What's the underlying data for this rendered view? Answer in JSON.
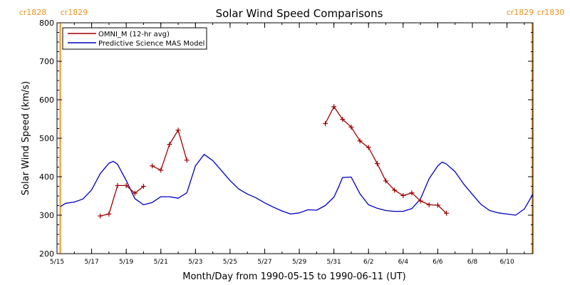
{
  "chart_data": {
    "type": "line",
    "title": "Solar Wind Speed Comparisons",
    "xlabel": "Month/Day from 1990-05-15 to 1990-06-11 (UT)",
    "ylabel": "Solar Wind Speed (km/s)",
    "xlim": [
      "1990-05-15",
      "1990-06-11T12:00"
    ],
    "ylim": [
      200,
      800
    ],
    "yticks": [
      200,
      300,
      400,
      500,
      600,
      700,
      800
    ],
    "xticks": [
      "1990-05-15",
      "1990-05-17",
      "1990-05-19",
      "1990-05-21",
      "1990-05-23",
      "1990-05-25",
      "1990-05-27",
      "1990-05-29",
      "1990-05-31",
      "1990-06-02",
      "1990-06-04",
      "1990-06-06",
      "1990-06-08",
      "1990-06-10"
    ],
    "xtick_labels": [
      "5/15",
      "5/17",
      "5/19",
      "5/21",
      "5/23",
      "5/25",
      "5/27",
      "5/29",
      "5/31",
      "6/2",
      "6/4",
      "6/6",
      "6/8",
      "6/10"
    ],
    "legend": {
      "placement": "top-left"
    },
    "carrington_markers": [
      {
        "date": "1990-05-15T04:30",
        "labels": [
          "cr1828",
          "cr1829"
        ],
        "color": "#f0a030"
      },
      {
        "date": "1990-06-11T12:00",
        "labels": [
          "cr1829",
          "cr1830"
        ],
        "color": "#f0a030"
      }
    ],
    "series": [
      {
        "name": "OMNI_M (12-hr avg)",
        "color": "#a00000",
        "marker": "+",
        "segments": [
          [
            [
              "1990-05-17T12:00",
              298
            ],
            [
              "1990-05-18T00:00",
              303
            ],
            [
              "1990-05-18T12:00",
              377
            ],
            [
              "1990-05-19T00:00",
              377
            ],
            [
              "1990-05-19T12:00",
              357
            ],
            [
              "1990-05-20T00:00",
              375
            ]
          ],
          [
            [
              "1990-05-20T12:00",
              428
            ],
            [
              "1990-05-21T00:00",
              417
            ],
            [
              "1990-05-21T12:00",
              484
            ],
            [
              "1990-05-22T00:00",
              521
            ],
            [
              "1990-05-22T12:00",
              443
            ]
          ],
          [
            [
              "1990-05-30T12:00",
              538
            ],
            [
              "1990-05-31T00:00",
              582
            ],
            [
              "1990-05-31T12:00",
              549
            ],
            [
              "1990-06-01T00:00",
              529
            ],
            [
              "1990-06-01T12:00",
              493
            ],
            [
              "1990-06-02T00:00",
              476
            ],
            [
              "1990-06-02T12:00",
              434
            ],
            [
              "1990-06-03T00:00",
              389
            ],
            [
              "1990-06-03T12:00",
              365
            ],
            [
              "1990-06-04T00:00",
              351
            ],
            [
              "1990-06-04T12:00",
              358
            ],
            [
              "1990-06-05T00:00",
              337
            ],
            [
              "1990-06-05T12:00",
              327
            ],
            [
              "1990-06-06T00:00",
              326
            ],
            [
              "1990-06-06T12:00",
              305
            ]
          ]
        ]
      },
      {
        "name": "Predictive Science MAS Model",
        "color": "#0000c0",
        "x": [
          "1990-05-15T04:30",
          "1990-05-15T12:00",
          "1990-05-16T00:00",
          "1990-05-16T12:00",
          "1990-05-17T00:00",
          "1990-05-17T12:00",
          "1990-05-18T00:00",
          "1990-05-18T06:00",
          "1990-05-18T12:00",
          "1990-05-19T00:00",
          "1990-05-19T12:00",
          "1990-05-20T00:00",
          "1990-05-20T12:00",
          "1990-05-21T00:00",
          "1990-05-21T12:00",
          "1990-05-22T00:00",
          "1990-05-22T12:00",
          "1990-05-23T00:00",
          "1990-05-23T12:00",
          "1990-05-24T00:00",
          "1990-05-24T12:00",
          "1990-05-25T00:00",
          "1990-05-25T12:00",
          "1990-05-26T00:00",
          "1990-05-26T12:00",
          "1990-05-27T00:00",
          "1990-05-27T12:00",
          "1990-05-28T00:00",
          "1990-05-28T12:00",
          "1990-05-29T00:00",
          "1990-05-29T12:00",
          "1990-05-30T00:00",
          "1990-05-30T12:00",
          "1990-05-31T00:00",
          "1990-05-31T06:00",
          "1990-05-31T12:00",
          "1990-06-01T00:00",
          "1990-06-01T12:00",
          "1990-06-02T00:00",
          "1990-06-02T12:00",
          "1990-06-03T00:00",
          "1990-06-03T12:00",
          "1990-06-04T00:00",
          "1990-06-04T12:00",
          "1990-06-05T00:00",
          "1990-06-05T12:00",
          "1990-06-06T00:00",
          "1990-06-06T06:00",
          "1990-06-06T12:00",
          "1990-06-07T00:00",
          "1990-06-07T12:00",
          "1990-06-08T00:00",
          "1990-06-08T12:00",
          "1990-06-09T00:00",
          "1990-06-09T12:00",
          "1990-06-10T00:00",
          "1990-06-10T12:00",
          "1990-06-11T00:00",
          "1990-06-11T12:00"
        ],
        "y": [
          322,
          331,
          334,
          342,
          366,
          408,
          435,
          440,
          432,
          390,
          343,
          327,
          333,
          348,
          348,
          344,
          358,
          428,
          458,
          442,
          416,
          390,
          368,
          355,
          345,
          332,
          321,
          311,
          303,
          306,
          314,
          313,
          325,
          347,
          371,
          398,
          399,
          356,
          327,
          318,
          312,
          310,
          310,
          317,
          342,
          395,
          428,
          438,
          433,
          413,
          381,
          354,
          328,
          312,
          306,
          303,
          300,
          316,
          355
        ]
      }
    ]
  }
}
